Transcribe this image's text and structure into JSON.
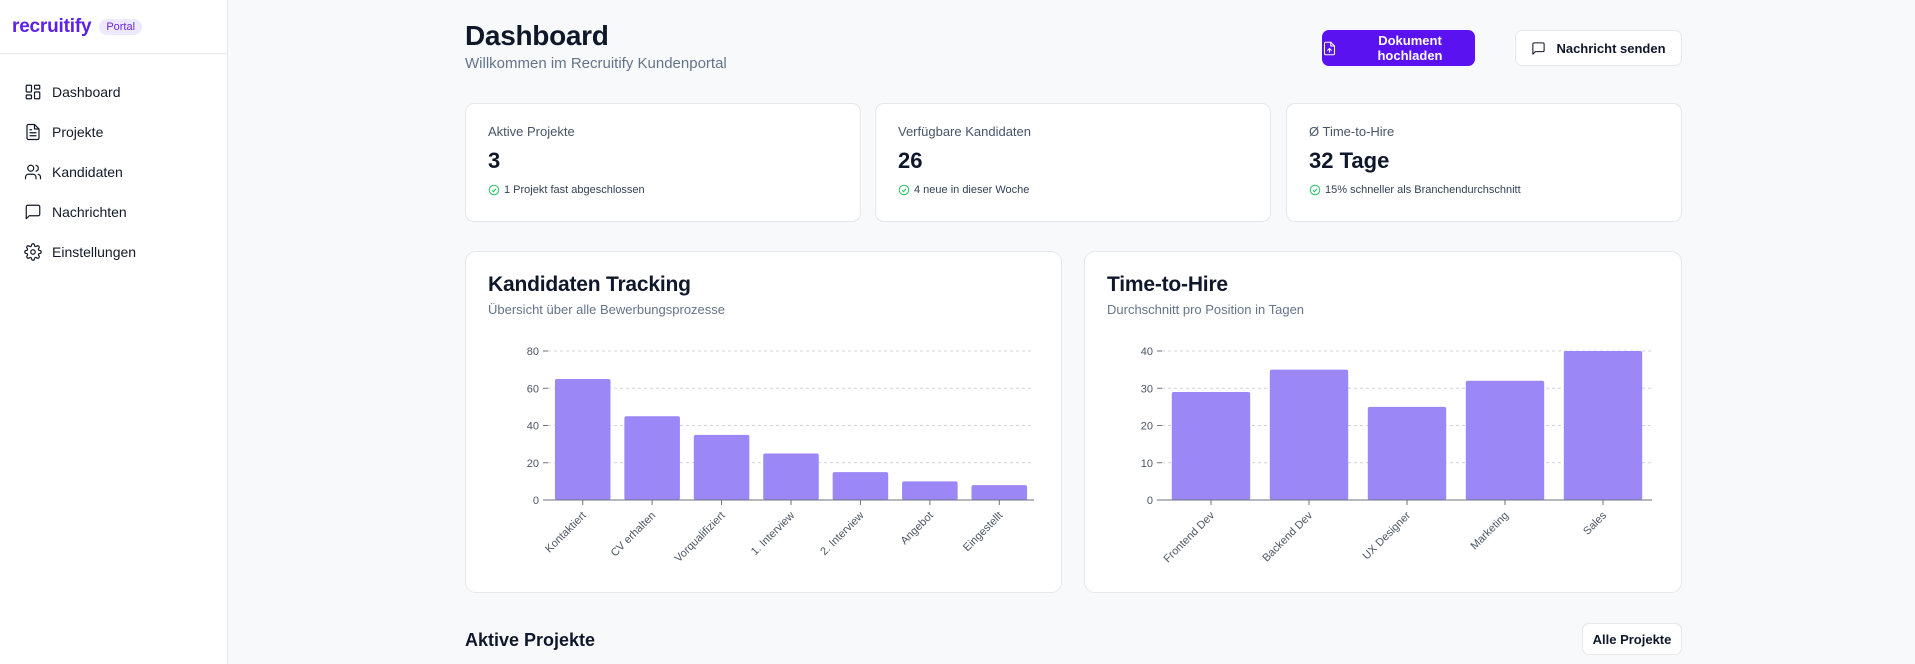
{
  "brand": {
    "name": "recruitify",
    "badge": "Portal",
    "color": "#5b21e6"
  },
  "sidebar": {
    "items": [
      {
        "label": "Dashboard",
        "icon": "dashboard-icon"
      },
      {
        "label": "Projekte",
        "icon": "file-icon"
      },
      {
        "label": "Kandidaten",
        "icon": "users-icon"
      },
      {
        "label": "Nachrichten",
        "icon": "message-icon"
      },
      {
        "label": "Einstellungen",
        "icon": "gear-icon"
      }
    ]
  },
  "header": {
    "title": "Dashboard",
    "subtitle": "Willkommen im Recruitify Kundenportal",
    "upload_label": "Dokument hochladen",
    "message_label": "Nachricht senden",
    "accent": "#5b12f0"
  },
  "stats": [
    {
      "label": "Aktive Projekte",
      "value": "3",
      "note": "1 Projekt fast abgeschlossen"
    },
    {
      "label": "Verfügbare Kandidaten",
      "value": "26",
      "note": "4 neue in dieser Woche"
    },
    {
      "label": "Ø Time-to-Hire",
      "value": "32 Tage",
      "note": "15% schneller als Branchendurchschnitt"
    }
  ],
  "charts": {
    "tracking": {
      "title": "Kandidaten Tracking",
      "subtitle": "Übersicht über alle Bewerbungsprozesse"
    },
    "tth": {
      "title": "Time-to-Hire",
      "subtitle": "Durchschnitt pro Position in Tagen"
    }
  },
  "chart_data": [
    {
      "type": "bar",
      "title": "Kandidaten Tracking",
      "categories": [
        "Kontaktiert",
        "CV erhalten",
        "Vorqualifiziert",
        "1. Interview",
        "2. Interview",
        "Angebot",
        "Eingestellt"
      ],
      "values": [
        65,
        45,
        35,
        25,
        15,
        10,
        8
      ],
      "yticks": [
        "0",
        "20",
        "40",
        "60",
        "80"
      ],
      "ylim": [
        0,
        80
      ],
      "grid": true,
      "color": "#9b87f5"
    },
    {
      "type": "bar",
      "title": "Time-to-Hire",
      "categories": [
        "Frontend Dev",
        "Backend Dev",
        "UX Designer",
        "Marketing",
        "Sales"
      ],
      "values": [
        29,
        35,
        25,
        32,
        40
      ],
      "yticks": [
        "0",
        "10",
        "20",
        "30",
        "40"
      ],
      "ylim": [
        0,
        40
      ],
      "grid": true,
      "color": "#9b87f5"
    }
  ],
  "projects": {
    "title": "Aktive Projekte",
    "all_label": "Alle Projekte"
  }
}
